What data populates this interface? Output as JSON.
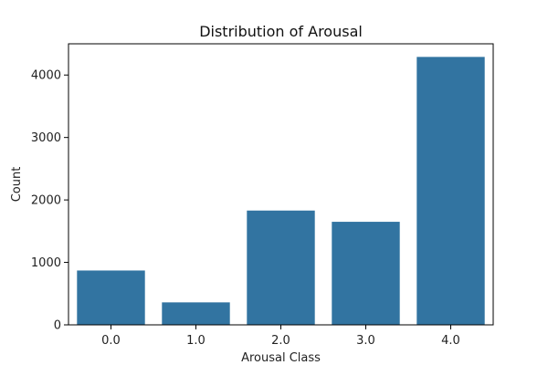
{
  "chart_data": {
    "type": "bar",
    "title": "Distribution of Arousal",
    "xlabel": "Arousal Class",
    "ylabel": "Count",
    "categories": [
      "0.0",
      "1.0",
      "2.0",
      "3.0",
      "4.0"
    ],
    "values": [
      870,
      360,
      1830,
      1650,
      4290
    ],
    "ylim": [
      0,
      4500
    ],
    "yticks": [
      0,
      1000,
      2000,
      3000,
      4000
    ],
    "bar_color": "#3274a1",
    "grid": false
  }
}
